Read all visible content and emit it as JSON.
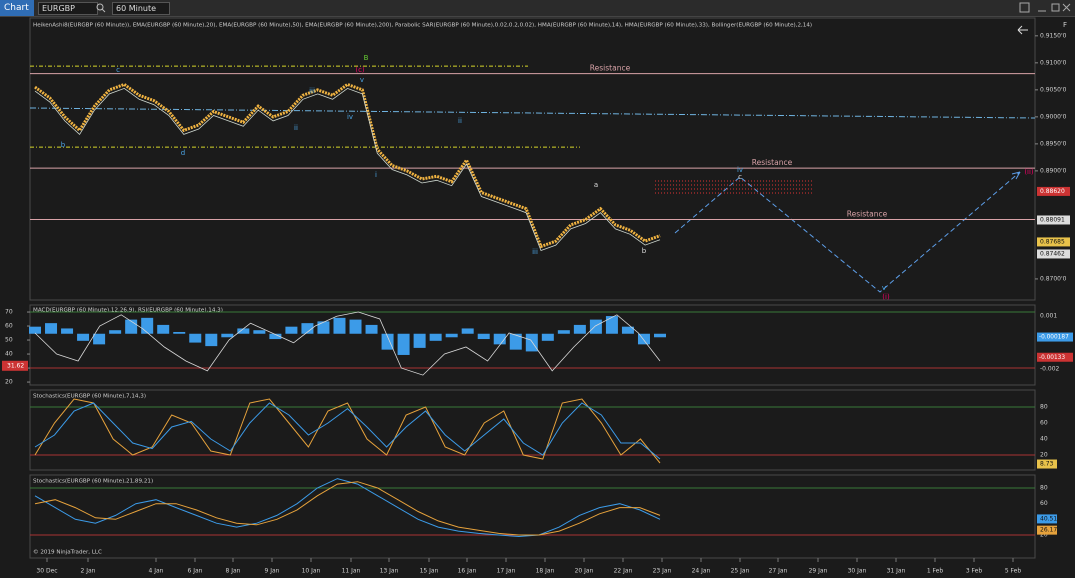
{
  "toolbar": {
    "tab": "Chart",
    "symbol": "EURGBP",
    "interval": "60 Minute"
  },
  "price_panel": {
    "title": "HeikenAshi8(EURGBP (60 Minute)), EMA(EURGBP (60 Minute),20), EMA(EURGBP (60 Minute),50), EMA(EURGBP (60 Minute),200), Parabolic SAR(EURGBP (60 Minute),0.02,0.2,0.02), HMA(EURGBP (60 Minute),14), HMA(EURGBP (60 Minute),33), Bollinger(EURGBP (60 Minute),2,14)",
    "ylim": [
      0.8661,
      0.9183
    ],
    "yticks": [
      {
        "value": 0.915,
        "label": "0.9150'0"
      },
      {
        "value": 0.91,
        "label": "0.9100'0"
      },
      {
        "value": 0.905,
        "label": "0.9050'0"
      },
      {
        "value": 0.9,
        "label": "0.9000'0"
      },
      {
        "value": 0.895,
        "label": "0.8950'0"
      },
      {
        "value": 0.89,
        "label": "0.8900'0"
      },
      {
        "value": 0.87,
        "label": "0.8700'0"
      }
    ],
    "price_tags": [
      {
        "value": 0.8862,
        "label": "0.88620"
      },
      0.88091,
      0.87685,
      0.87462
    ],
    "resistance": [
      {
        "value": 0.908,
        "label": "Resistance"
      },
      {
        "value": 0.8905,
        "label": "Resistance"
      },
      {
        "value": 0.881,
        "label": "Resistance"
      }
    ],
    "channel": [
      0.9094,
      0.8944
    ],
    "close": [
      0.9055,
      0.9035,
      0.9,
      0.8975,
      0.902,
      0.905,
      0.906,
      0.904,
      0.903,
      0.901,
      0.8975,
      0.8985,
      0.901,
      0.9,
      0.899,
      0.902,
      0.9,
      0.901,
      0.904,
      0.905,
      0.904,
      0.906,
      0.905,
      0.894,
      0.891,
      0.89,
      0.8885,
      0.889,
      0.888,
      0.892,
      0.886,
      0.885,
      0.884,
      0.883,
      0.876,
      0.877,
      0.88,
      0.881,
      0.883,
      0.88,
      0.879,
      0.877,
      0.878
    ],
    "wave_labels": [
      "c",
      "B",
      "(c)",
      "v",
      "iii",
      "iv",
      "ii",
      "i",
      "ii",
      "iii",
      "a",
      "b",
      "iv",
      "c",
      "v",
      "(i)",
      "(ii)",
      "b",
      "d",
      "Resistance"
    ]
  },
  "macd_panel": {
    "title": "MACD(EURGBP (60 Minute),12,26,9), RSI(EURGBP (60 Minute),14,3)",
    "ylim": [
      -0.0029,
      0.00157
    ],
    "yticks": [
      0.001,
      -0.002
    ],
    "rsi_ylim": [
      17.9,
      74.3
    ],
    "rsi_yticks": [
      70,
      60,
      50,
      40,
      30,
      20
    ],
    "tags": [
      -0.000187,
      -0.00133
    ],
    "rsi_tag": 31.62,
    "histogram": [
      0.0004,
      0.0006,
      0.0003,
      -0.0004,
      -0.0006,
      0.0002,
      0.0008,
      0.0009,
      0.0005,
      0.0001,
      -0.0005,
      -0.0007,
      -0.0002,
      0.0003,
      0.0002,
      -0.0003,
      0.0004,
      0.0006,
      0.0007,
      0.0009,
      0.0008,
      0.0005,
      -0.0009,
      -0.0012,
      -0.0008,
      -0.0004,
      -0.0002,
      0.0003,
      -0.0003,
      -0.0006,
      -0.0009,
      -0.001,
      -0.0004,
      0.0002,
      0.0005,
      0.0008,
      0.001,
      0.0004,
      -0.0006,
      -0.0002
    ],
    "rsi": [
      55,
      40,
      35,
      60,
      68,
      58,
      45,
      35,
      28,
      50,
      62,
      55,
      48,
      60,
      67,
      70,
      65,
      30,
      25,
      40,
      45,
      35,
      55,
      50,
      28,
      45,
      60,
      68,
      55,
      35
    ]
  },
  "stoch1_panel": {
    "title": "Stochastics(EURGBP (60 Minute),7,14,3)",
    "ylim": [
      1.25,
      101.25
    ],
    "yticks": [
      80,
      60,
      40,
      20
    ],
    "tag": 8.73,
    "k": [
      20,
      60,
      90,
      85,
      40,
      20,
      30,
      70,
      60,
      25,
      20,
      85,
      90,
      60,
      30,
      75,
      85,
      40,
      20,
      70,
      80,
      30,
      20,
      60,
      75,
      20,
      15,
      85,
      90,
      60,
      20,
      40,
      10
    ],
    "d": [
      30,
      45,
      75,
      85,
      60,
      35,
      28,
      55,
      62,
      40,
      25,
      60,
      85,
      70,
      45,
      60,
      78,
      55,
      30,
      55,
      75,
      45,
      25,
      45,
      65,
      35,
      20,
      60,
      85,
      70,
      35,
      35,
      15
    ]
  },
  "stoch2_panel": {
    "title": "Stochastics(EURGBP (60 Minute),21,89,21)",
    "ylim": [
      -9.4,
      96.6
    ],
    "yticks": [
      80,
      60,
      40,
      20
    ],
    "tags": [
      40.51,
      26.17
    ],
    "k": [
      70,
      55,
      40,
      35,
      45,
      60,
      65,
      55,
      45,
      35,
      30,
      35,
      45,
      60,
      80,
      92,
      85,
      70,
      55,
      40,
      30,
      25,
      22,
      20,
      18,
      20,
      30,
      45,
      55,
      60,
      52,
      40
    ],
    "d": [
      60,
      65,
      55,
      42,
      40,
      50,
      60,
      60,
      52,
      42,
      35,
      33,
      40,
      52,
      70,
      85,
      88,
      80,
      65,
      50,
      38,
      30,
      26,
      22,
      20,
      20,
      25,
      35,
      47,
      55,
      55,
      45
    ]
  },
  "dates": [
    "30 Dec",
    "2 Jan",
    "4 Jan",
    "6 Jan",
    "8 Jan",
    "9 Jan",
    "10 Jan",
    "11 Jan",
    "13 Jan",
    "15 Jan",
    "16 Jan",
    "17 Jan",
    "18 Jan",
    "20 Jan",
    "22 Jan",
    "23 Jan",
    "24 Jan",
    "25 Jan",
    "27 Jan",
    "29 Jan",
    "30 Jan",
    "31 Jan",
    "1 Feb",
    "3 Feb",
    "5 Feb"
  ],
  "copyright": "© 2019 NinjaTrader, LLC"
}
